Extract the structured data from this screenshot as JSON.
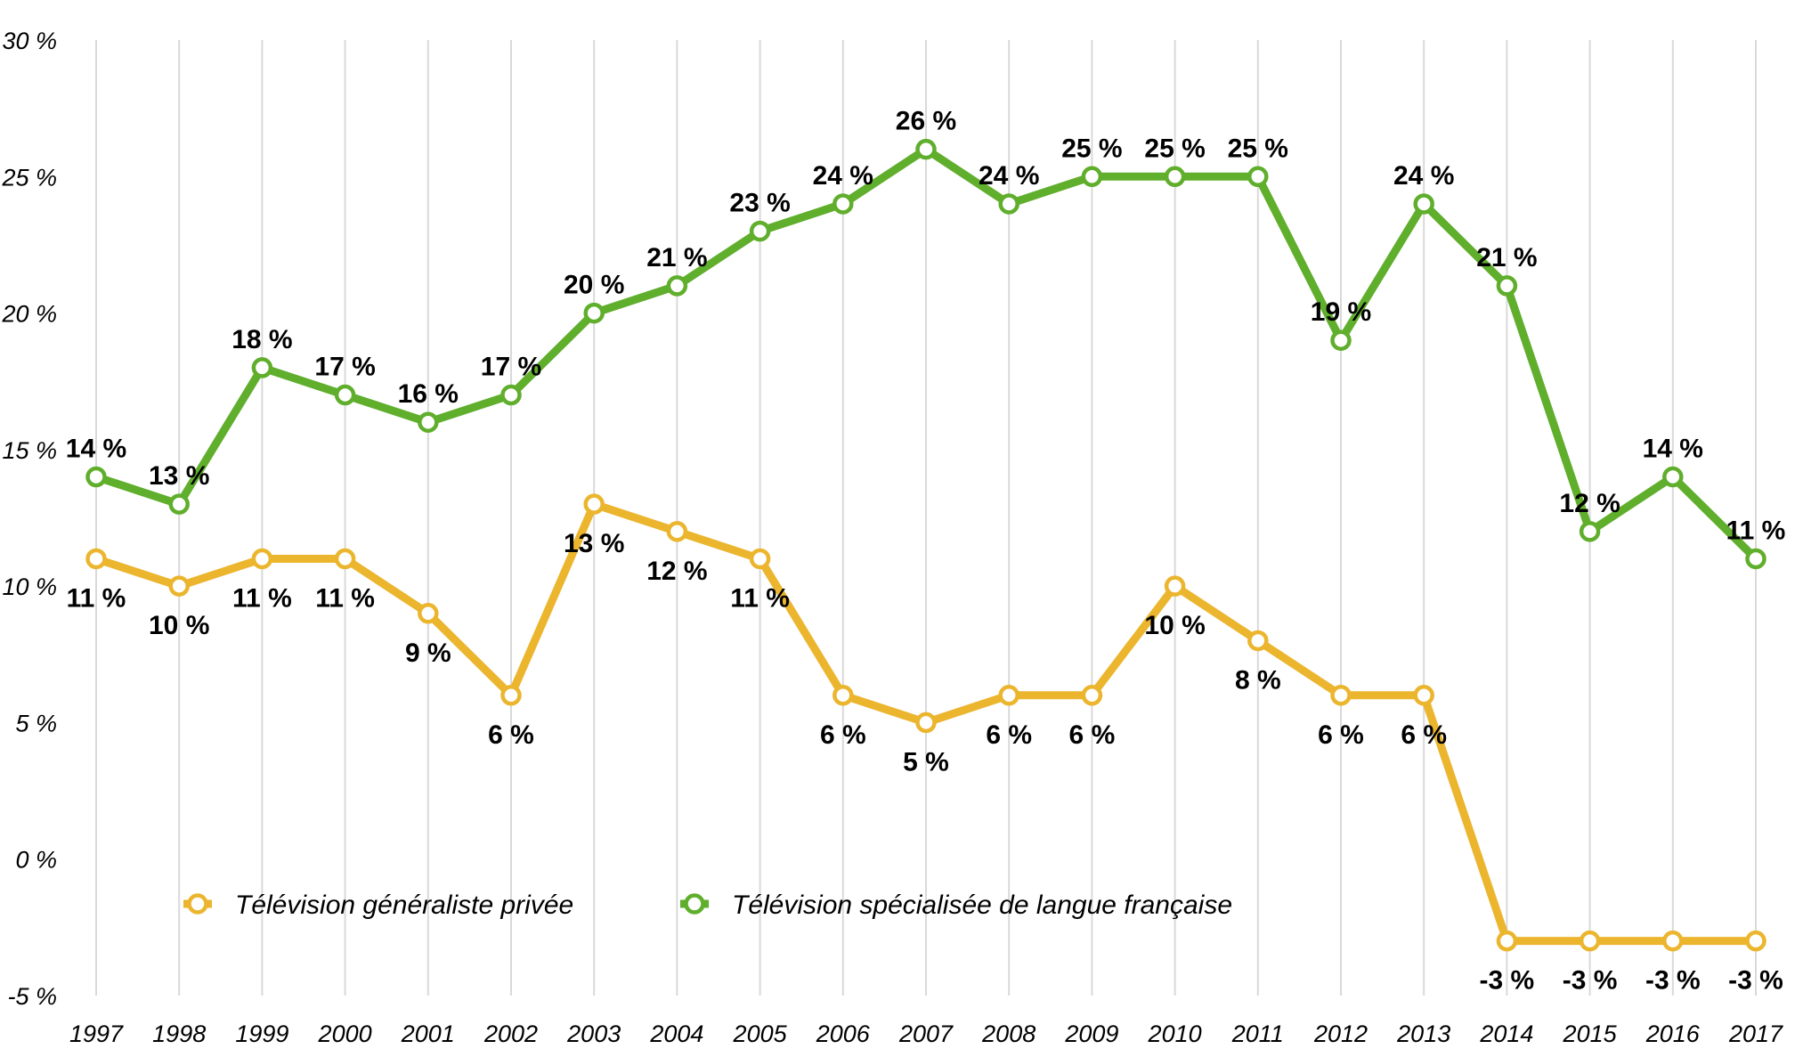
{
  "chart_data": {
    "type": "line",
    "title": "",
    "xlabel": "",
    "ylabel": "",
    "categories": [
      "1997",
      "1998",
      "1999",
      "2000",
      "2001",
      "2002",
      "2003",
      "2004",
      "2005",
      "2006",
      "2007",
      "2008",
      "2009",
      "2010",
      "2011",
      "2012",
      "2013",
      "2014",
      "2015",
      "2016",
      "2017"
    ],
    "y_ticks": [
      "30 %",
      "25 %",
      "20 %",
      "15 %",
      "10 %",
      "5 %",
      "0 %",
      "-5 %"
    ],
    "ylim": [
      -5,
      30
    ],
    "grid": "vertical",
    "legend_position": "bottom-left",
    "series": [
      {
        "name": "Télévision généraliste privée",
        "color": "#EBB52E",
        "values": [
          11,
          10,
          11,
          11,
          9,
          6,
          13,
          12,
          11,
          6,
          5,
          6,
          6,
          10,
          8,
          6,
          6,
          -3,
          -3,
          -3,
          -3
        ],
        "labels": [
          "11 %",
          "10 %",
          "11 %",
          "11 %",
          "9 %",
          "6 %",
          "13 %",
          "12 %",
          "11 %",
          "6 %",
          "5 %",
          "6 %",
          "6 %",
          "10 %",
          "8 %",
          "6 %",
          "6 %",
          "-3 %",
          "-3 %",
          "-3 %",
          "-3 %"
        ]
      },
      {
        "name": "Télévision spécialisée de langue française",
        "color": "#5FAE2C",
        "values": [
          14,
          13,
          18,
          17,
          16,
          17,
          20,
          21,
          23,
          24,
          26,
          24,
          25,
          25,
          25,
          19,
          24,
          21,
          12,
          14,
          11
        ],
        "labels": [
          "14 %",
          "13 %",
          "18 %",
          "17 %",
          "16 %",
          "17 %",
          "20 %",
          "21 %",
          "23 %",
          "24 %",
          "26 %",
          "24 %",
          "25 %",
          "25 %",
          "25 %",
          "19 %",
          "24 %",
          "21 %",
          "12 %",
          "14 %",
          "11 %"
        ]
      }
    ]
  }
}
